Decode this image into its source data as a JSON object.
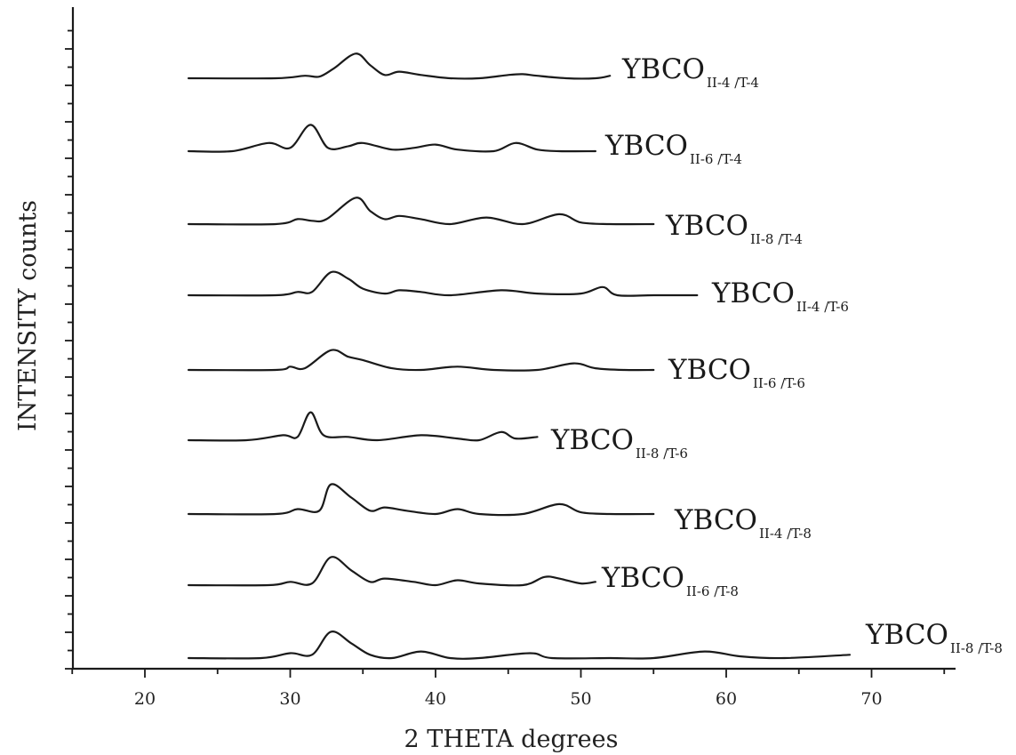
{
  "chart_data": {
    "type": "line",
    "stacked_offset": true,
    "xlabel": "2 THETA degrees",
    "ylabel": "INTENSITY counts",
    "xlim": [
      15,
      75
    ],
    "xticks": [
      20,
      30,
      40,
      50,
      60,
      70
    ],
    "yticks_shown": false,
    "series": [
      {
        "name_main": "YBCO",
        "name_sub": "II-4 /T-4",
        "x": [
          23,
          29,
          31,
          32,
          33,
          34.5,
          35.5,
          36.5,
          37.5,
          39,
          41,
          43,
          45,
          46,
          47,
          49,
          51,
          52
        ],
        "y": [
          0,
          0,
          1.5,
          1,
          6,
          15,
          8,
          2,
          4,
          2,
          0,
          0,
          2,
          2.5,
          1.5,
          0,
          0,
          1.5
        ]
      },
      {
        "name_main": "YBCO",
        "name_sub": "II-6 /T-4",
        "x": [
          23,
          26,
          28.5,
          30,
          31.4,
          32.6,
          34,
          35,
          37,
          38.5,
          40,
          41.5,
          44,
          45.5,
          47,
          48.5,
          51
        ],
        "y": [
          0,
          0,
          5,
          2,
          16,
          2,
          3,
          5,
          1,
          2,
          4,
          1,
          0,
          5,
          1,
          0,
          0
        ]
      },
      {
        "name_main": "YBCO",
        "name_sub": "II-8 /T-4",
        "x": [
          23,
          29,
          30.5,
          31.5,
          32.5,
          34.5,
          35.5,
          36.5,
          37.5,
          39,
          41,
          43.5,
          46,
          48.5,
          50,
          52,
          55
        ],
        "y": [
          0,
          0,
          3,
          2,
          3,
          16,
          8,
          3,
          5,
          3,
          0,
          4,
          0,
          6,
          1,
          0,
          0
        ]
      },
      {
        "name_main": "YBCO",
        "name_sub": "II-4 /T-6",
        "x": [
          23,
          29,
          30.5,
          31.5,
          32.8,
          34,
          35,
          36.5,
          37.5,
          39,
          41,
          44.5,
          47,
          50,
          51.5,
          52.5,
          55,
          58
        ],
        "y": [
          0,
          0,
          2,
          2,
          14,
          10,
          4,
          1,
          3,
          2,
          0,
          3,
          1,
          1,
          5,
          0,
          0,
          0
        ]
      },
      {
        "name_main": "YBCO",
        "name_sub": "II-6 /T-6",
        "x": [
          23,
          29,
          30,
          31,
          32.8,
          34,
          35,
          37,
          39,
          41.5,
          44,
          47,
          49.5,
          51,
          53,
          55
        ],
        "y": [
          0,
          0,
          2,
          1,
          12,
          8,
          6,
          1,
          0,
          2,
          0,
          0,
          4,
          1,
          0,
          0
        ]
      },
      {
        "name_main": "YBCO",
        "name_sub": "II-8 /T-6",
        "x": [
          23,
          27,
          29.5,
          30.5,
          31.4,
          32.3,
          34,
          36,
          39,
          41.5,
          43,
          44.5,
          45.5,
          47
        ],
        "y": [
          0,
          0,
          3,
          2,
          17,
          3,
          2,
          0,
          3,
          1,
          0,
          5,
          1,
          2
        ]
      },
      {
        "name_main": "YBCO",
        "name_sub": "II-4 /T-8",
        "x": [
          23,
          29,
          30.5,
          32,
          32.8,
          34.2,
          35.5,
          36.5,
          38,
          40,
          41.5,
          43,
          46,
          48.5,
          50,
          52,
          55
        ],
        "y": [
          0,
          0,
          3,
          2,
          18,
          10,
          2,
          4,
          2,
          0,
          3,
          0,
          0,
          6,
          1,
          0,
          0
        ]
      },
      {
        "name_main": "YBCO",
        "name_sub": "II-6 /T-8",
        "x": [
          23,
          28.5,
          30,
          31.5,
          32.8,
          34.2,
          35.5,
          36.5,
          38.5,
          40,
          41.5,
          43,
          46,
          47.5,
          48.5,
          50,
          51
        ],
        "y": [
          0,
          0,
          2,
          1,
          17,
          9,
          2,
          4,
          2,
          0,
          3,
          1,
          0,
          5,
          4,
          1,
          2
        ]
      },
      {
        "name_main": "YBCO",
        "name_sub": "II-8 /T-8",
        "x": [
          23,
          28,
          30,
          31.5,
          32.8,
          34.2,
          35.5,
          37,
          39,
          41,
          43,
          46.5,
          48,
          52,
          55,
          58.5,
          61,
          64,
          68.5
        ],
        "y": [
          0,
          0,
          3,
          2,
          16,
          9,
          2,
          0,
          4,
          0,
          0,
          3,
          0,
          0,
          0,
          4,
          1,
          0,
          2
        ]
      }
    ]
  }
}
